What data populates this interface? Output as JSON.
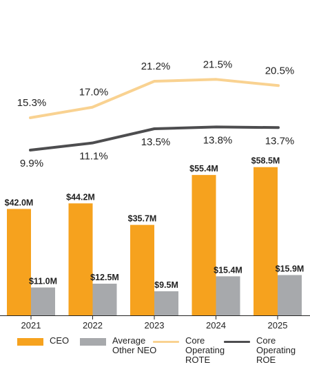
{
  "chart_data": {
    "type": "bar",
    "categories": [
      "2021",
      "2022",
      "2023",
      "2024",
      "2025"
    ],
    "series": [
      {
        "name": "CEO",
        "kind": "bar",
        "values": [
          42.0,
          44.2,
          35.7,
          55.4,
          58.5
        ],
        "labels": [
          "$42.0M",
          "$44.2M",
          "$35.7M",
          "$55.4M",
          "$58.5M"
        ],
        "color": "#F6A21E"
      },
      {
        "name": "Average Other NEO",
        "kind": "bar",
        "values": [
          11.0,
          12.5,
          9.5,
          15.4,
          15.9
        ],
        "labels": [
          "$11.0M",
          "$12.5M",
          "$9.5M",
          "$15.4M",
          "$15.9M"
        ],
        "color": "#A7A9AC"
      },
      {
        "name": "Core Operating ROTE",
        "kind": "line",
        "values": [
          15.3,
          17.0,
          21.2,
          21.5,
          20.5
        ],
        "labels": [
          "15.3%",
          "17.0%",
          "21.2%",
          "21.5%",
          "20.5%"
        ],
        "color": "#F9D291"
      },
      {
        "name": "Core Operating ROE",
        "kind": "line",
        "values": [
          9.9,
          11.1,
          13.5,
          13.8,
          13.7
        ],
        "labels": [
          "9.9%",
          "11.1%",
          "13.5%",
          "13.8%",
          "13.7%"
        ],
        "color": "#4D4D4F"
      }
    ],
    "bar_units": "$M",
    "line_units": "%",
    "grid": false,
    "legend_position": "bottom",
    "title": "",
    "xlabel": "",
    "ylabel": ""
  },
  "legend": [
    {
      "label": "CEO",
      "color": "#F6A21E",
      "style": "box"
    },
    {
      "label": "Average Other NEO",
      "color": "#A7A9AC",
      "style": "box"
    },
    {
      "label": "Core Operating ROTE",
      "color": "#F9D291",
      "style": "line"
    },
    {
      "label": "Core Operating ROE",
      "color": "#4D4D4F",
      "style": "line"
    }
  ]
}
